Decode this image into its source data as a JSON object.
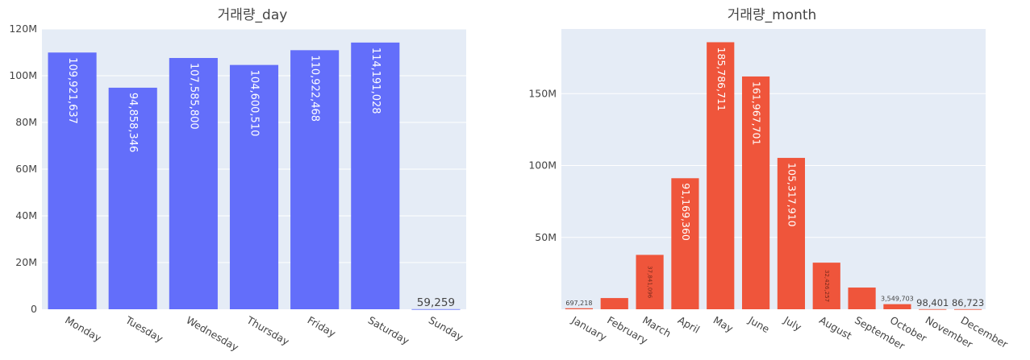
{
  "chart_data": [
    {
      "type": "bar",
      "title": "거래량_day",
      "categories": [
        "Monday",
        "Tuesday",
        "Wednesday",
        "Thursday",
        "Friday",
        "Saturday",
        "Sunday"
      ],
      "values": [
        109921637,
        94858346,
        107585800,
        104600510,
        110922468,
        114191028,
        59259
      ],
      "value_labels": [
        "109,921,637",
        "94,858,346",
        "107,585,800",
        "104,600,510",
        "110,922,468",
        "114,191,028",
        "59,259"
      ],
      "ylim": [
        0,
        120000000
      ],
      "yticks": [
        0,
        20000000,
        40000000,
        60000000,
        80000000,
        100000000,
        120000000
      ],
      "ytick_labels": [
        "0",
        "20M",
        "40M",
        "60M",
        "80M",
        "100M",
        "120M"
      ],
      "bar_color": "#636efa",
      "grid": true,
      "legend": "none"
    },
    {
      "type": "bar",
      "title": "거래량_month",
      "categories": [
        "January",
        "February",
        "March",
        "April",
        "May",
        "June",
        "July",
        "August",
        "September",
        "October",
        "November",
        "December"
      ],
      "values": [
        697218,
        7800000,
        37841096,
        91169360,
        185786711,
        161967701,
        105317910,
        32426257,
        15100000,
        3549703,
        98401,
        86723
      ],
      "value_labels": [
        "697,218",
        "",
        "37,841,096",
        "91,169,360",
        "185,786,711",
        "161,967,701",
        "105,317,910",
        "32,426,257",
        "",
        "3,549,703",
        "98,401",
        "86,723"
      ],
      "ylim": [
        0,
        195000000
      ],
      "yticks": [
        50000000,
        100000000,
        150000000
      ],
      "ytick_labels": [
        "50M",
        "100M",
        "150M"
      ],
      "bar_color": "#ef553b",
      "grid": true,
      "legend": "none"
    }
  ],
  "colors": {
    "plot_bg": "#e5ecf6",
    "grid": "#ffffff",
    "text": "#444444"
  }
}
